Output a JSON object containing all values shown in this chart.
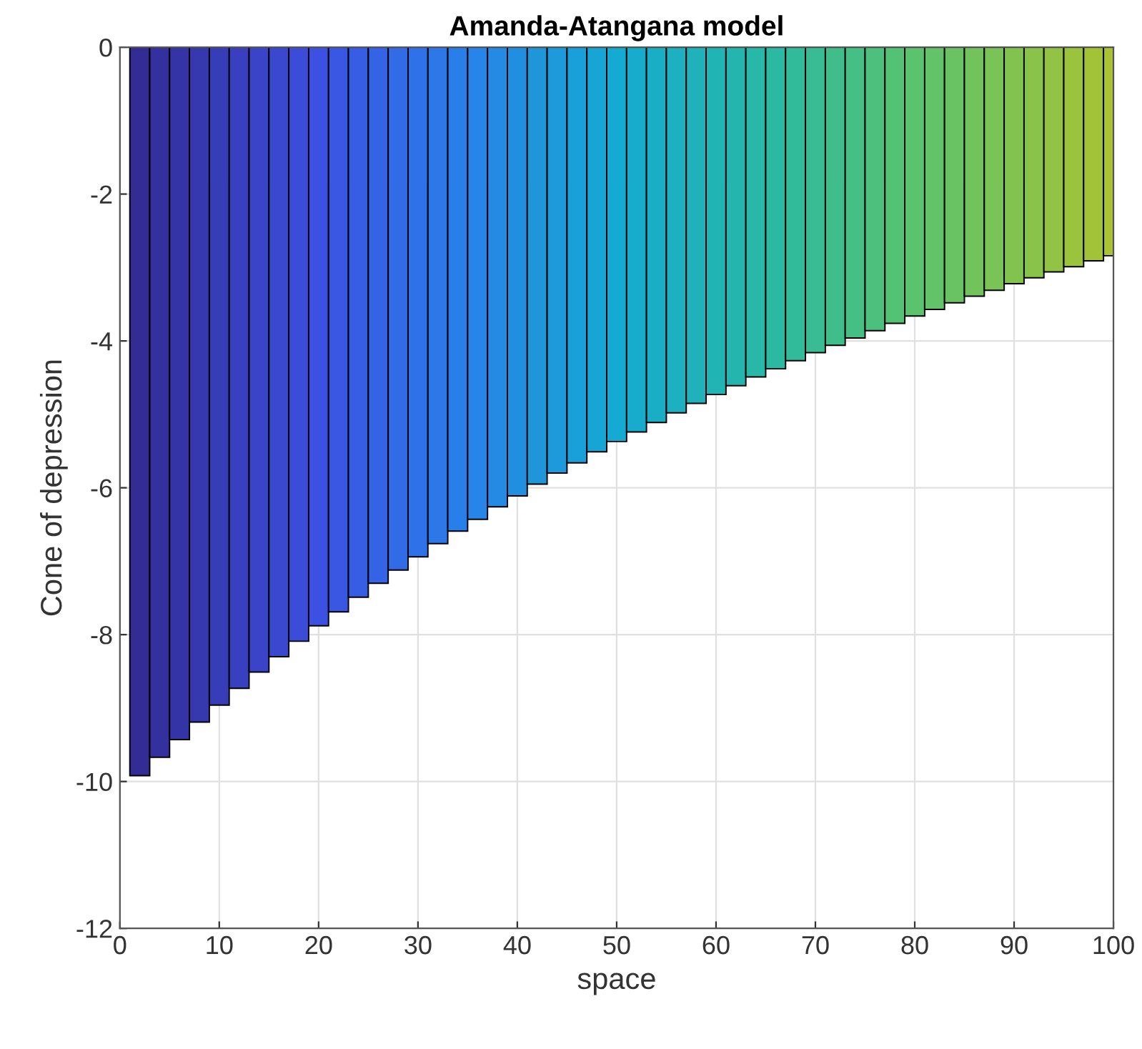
{
  "chart_data": {
    "type": "bar",
    "title": "Amanda-Atangana model",
    "xlabel": "space",
    "ylabel": "Cone of depression",
    "x": [
      2,
      4,
      6,
      8,
      10,
      12,
      14,
      16,
      18,
      20,
      22,
      24,
      26,
      28,
      30,
      32,
      34,
      36,
      38,
      40,
      42,
      44,
      46,
      48,
      50,
      52,
      54,
      56,
      58,
      60,
      62,
      64,
      66,
      68,
      70,
      72,
      74,
      76,
      78,
      80,
      82,
      84,
      86,
      88,
      90,
      92,
      94,
      96,
      98,
      100
    ],
    "values": [
      -9.92,
      -9.67,
      -9.43,
      -9.19,
      -8.96,
      -8.73,
      -8.51,
      -8.3,
      -8.09,
      -7.88,
      -7.69,
      -7.49,
      -7.3,
      -7.12,
      -6.94,
      -6.76,
      -6.59,
      -6.43,
      -6.26,
      -6.11,
      -5.95,
      -5.8,
      -5.66,
      -5.51,
      -5.37,
      -5.24,
      -5.11,
      -4.98,
      -4.85,
      -4.73,
      -4.61,
      -4.49,
      -4.38,
      -4.27,
      -4.16,
      -4.06,
      -3.96,
      -3.86,
      -3.76,
      -3.66,
      -3.57,
      -3.48,
      -3.39,
      -3.31,
      -3.22,
      -3.14,
      -3.06,
      -2.99,
      -2.91,
      -2.84
    ],
    "colors": [
      "#332c95",
      "#34309d",
      "#3534a6",
      "#3638ae",
      "#373cb7",
      "#3840bf",
      "#3944c8",
      "#3a48d0",
      "#3b4cd9",
      "#3c50e1",
      "#3957e2",
      "#375de4",
      "#3464e5",
      "#316be6",
      "#2f71e8",
      "#2c78e9",
      "#297fea",
      "#2785e9",
      "#248ae4",
      "#218fdf",
      "#1f95da",
      "#1c9adc",
      "#199fd9",
      "#17a5d5",
      "#14aad2",
      "#17accc",
      "#19aec6",
      "#1cb0c0",
      "#1fb2ba",
      "#21b4b4",
      "#24b6ae",
      "#27b8a8",
      "#2bbaa1",
      "#32bb9a",
      "#39bc93",
      "#3fbe8b",
      "#46bf84",
      "#4dc07d",
      "#53c275",
      "#5ac36e",
      "#62c368",
      "#6ac362",
      "#72c35c",
      "#7ac356",
      "#82c350",
      "#8ac34a",
      "#92c344",
      "#9ac33e",
      "#a2c338",
      "#aac332"
    ],
    "xlim": [
      0,
      100
    ],
    "ylim": [
      -12,
      0
    ],
    "xticks": [
      0,
      10,
      20,
      30,
      40,
      50,
      60,
      70,
      80,
      90,
      100
    ],
    "yticks": [
      -12,
      -10,
      -8,
      -6,
      -4,
      -2,
      0
    ],
    "grid": true
  }
}
